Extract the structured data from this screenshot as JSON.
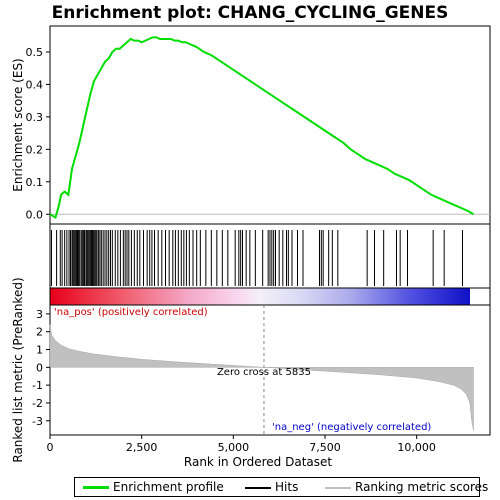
{
  "chart_data": {
    "type": "line",
    "title": "Enrichment plot: CHANG_CYCLING_GENES",
    "colors": {
      "enrichment": "#00dd00",
      "hits": "#000000",
      "metric_fill": "#c0c0c0",
      "pos_label": "#cc0000",
      "neg_label": "#0000cc"
    },
    "es_panel": {
      "ylabel": "Enrichment score (ES)",
      "ylim": [
        -0.03,
        0.58
      ],
      "yticks": [
        "0.0",
        "0.1",
        "0.2",
        "0.3",
        "0.4",
        "0.5"
      ],
      "ytick_values": [
        0.0,
        0.1,
        0.2,
        0.3,
        0.4,
        0.5
      ],
      "grid": false,
      "series": [
        {
          "x": [
            0,
            150,
            250,
            300,
            400,
            500,
            550,
            600,
            700,
            800,
            900,
            1000,
            1100,
            1200,
            1300,
            1400,
            1500,
            1600,
            1700,
            1800,
            1900,
            2000,
            2100,
            2200,
            2300,
            2400,
            2500,
            2600,
            2700,
            2800,
            2900,
            3000,
            3100,
            3200,
            3300,
            3400,
            3500,
            3600,
            3700,
            3800,
            3900,
            4000,
            4200,
            4400,
            4600,
            4800,
            5000,
            5200,
            5400,
            5600,
            5800,
            6000,
            6200,
            6400,
            6600,
            6800,
            7000,
            7200,
            7400,
            7600,
            7800,
            8000,
            8200,
            8400,
            8600,
            8800,
            9000,
            9200,
            9400,
            9600,
            9800,
            10000,
            10200,
            10400,
            10600,
            10800,
            11000,
            11200,
            11400,
            11550
          ],
          "y": [
            0.0,
            -0.01,
            0.03,
            0.06,
            0.07,
            0.06,
            0.1,
            0.14,
            0.18,
            0.22,
            0.27,
            0.32,
            0.37,
            0.41,
            0.43,
            0.45,
            0.47,
            0.48,
            0.5,
            0.51,
            0.51,
            0.52,
            0.53,
            0.54,
            0.535,
            0.535,
            0.53,
            0.535,
            0.54,
            0.545,
            0.545,
            0.54,
            0.54,
            0.54,
            0.54,
            0.535,
            0.535,
            0.53,
            0.53,
            0.525,
            0.52,
            0.515,
            0.5,
            0.49,
            0.475,
            0.46,
            0.445,
            0.43,
            0.415,
            0.4,
            0.385,
            0.37,
            0.355,
            0.34,
            0.325,
            0.31,
            0.295,
            0.28,
            0.265,
            0.25,
            0.235,
            0.22,
            0.2,
            0.185,
            0.17,
            0.16,
            0.15,
            0.14,
            0.125,
            0.115,
            0.105,
            0.09,
            0.075,
            0.06,
            0.05,
            0.04,
            0.03,
            0.02,
            0.01,
            0.0
          ]
        }
      ]
    },
    "hits": [
      40,
      180,
      280,
      330,
      400,
      460,
      520,
      560,
      600,
      630,
      660,
      690,
      720,
      750,
      780,
      810,
      850,
      880,
      910,
      940,
      980,
      1010,
      1040,
      1070,
      1100,
      1130,
      1160,
      1190,
      1220,
      1250,
      1280,
      1320,
      1360,
      1400,
      1450,
      1500,
      1550,
      1600,
      1650,
      1700,
      1780,
      1850,
      1920,
      2000,
      2050,
      2100,
      2150,
      2220,
      2300,
      2380,
      2450,
      2550,
      2650,
      2720,
      2780,
      2850,
      2950,
      3050,
      3150,
      3250,
      3350,
      3420,
      3500,
      3580,
      3650,
      3720,
      3800,
      3900,
      4000,
      4100,
      4250,
      4400,
      4550,
      4700,
      4850,
      5050,
      5150,
      5200,
      5250,
      5350,
      5450,
      5600,
      5800,
      5950,
      6000,
      6050,
      6100,
      6150,
      6250,
      6350,
      6450,
      6500,
      6600,
      6750,
      6900,
      7350,
      7400,
      7450,
      7600,
      7700,
      7850,
      8650,
      8850,
      9100,
      9450,
      9550,
      9750,
      10450,
      10750,
      11250
    ],
    "metric_panel": {
      "ylabel": "Ranked list metric (PreRanked)",
      "ylim": [
        -3.8,
        3.5
      ],
      "yticks": [
        "3",
        "2",
        "1",
        "0",
        "-1",
        "-2",
        "-3"
      ],
      "ytick_values": [
        3,
        2,
        1,
        0,
        -1,
        -2,
        -3
      ],
      "xlabel": "Rank in Ordered Dataset",
      "xlim": [
        0,
        12000
      ],
      "xticks": [
        "0",
        "2,500",
        "5,000",
        "7,500",
        "10,000"
      ],
      "xtick_values": [
        0,
        2500,
        5000,
        7500,
        10000
      ],
      "profile": {
        "x": [
          0,
          50,
          150,
          300,
          500,
          800,
          1200,
          1800,
          2500,
          3500,
          4500,
          5835,
          7000,
          8000,
          9000,
          10000,
          10600,
          11000,
          11200,
          11350,
          11450,
          11500,
          11550
        ],
        "y": [
          2.4,
          1.8,
          1.5,
          1.25,
          1.05,
          0.9,
          0.75,
          0.6,
          0.45,
          0.3,
          0.17,
          0.0,
          -0.15,
          -0.28,
          -0.42,
          -0.6,
          -0.8,
          -1.0,
          -1.2,
          -1.5,
          -2.0,
          -3.0,
          -3.55
        ]
      },
      "zero_cross_rank": 5835,
      "zero_cross_label": "Zero cross at 5835",
      "pos_label": "'na_pos' (positively correlated)",
      "neg_label": "'na_neg' (negatively correlated)"
    },
    "legend": {
      "items": [
        {
          "label": "Enrichment profile",
          "color": "#00dd00"
        },
        {
          "label": "Hits",
          "color": "#000000"
        },
        {
          "label": "Ranking metric scores",
          "color": "#c0c0c0"
        }
      ]
    }
  }
}
